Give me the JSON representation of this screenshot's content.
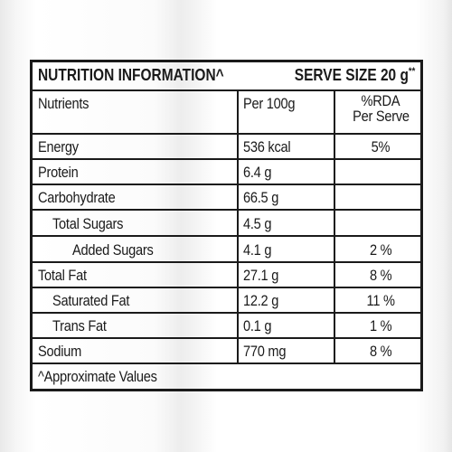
{
  "header": {
    "title": "NUTRITION INFORMATION^",
    "serve_size": "SERVE SIZE 20 g",
    "serve_size_mark": "**"
  },
  "columns": {
    "nutrients": "Nutrients",
    "per100": "Per 100g",
    "rda_line1": "%RDA",
    "rda_line2": "Per Serve"
  },
  "rows": [
    {
      "name": "Energy",
      "per100": "536 kcal",
      "rda": "5%"
    },
    {
      "name": "Protein",
      "per100": "6.4 g",
      "rda": ""
    },
    {
      "name": "Carbohydrate",
      "per100": "66.5 g",
      "rda": ""
    },
    {
      "name": "Total Sugars",
      "per100": "4.5 g",
      "rda": ""
    },
    {
      "name": "Added Sugars",
      "per100": "4.1 g",
      "rda": "2 %"
    },
    {
      "name": "Total Fat",
      "per100": "27.1 g",
      "rda": "8 %"
    },
    {
      "name": "Saturated Fat",
      "per100": "12.2 g",
      "rda": "11 %"
    },
    {
      "name": "Trans Fat",
      "per100": "0.1 g",
      "rda": "1 %"
    },
    {
      "name": "Sodium",
      "per100": "770 mg",
      "rda": "8 %"
    }
  ],
  "footnote": "^Approximate Values",
  "colors": {
    "border": "#1a1a1a",
    "text": "#1a1a1a",
    "background": "#ffffff"
  }
}
